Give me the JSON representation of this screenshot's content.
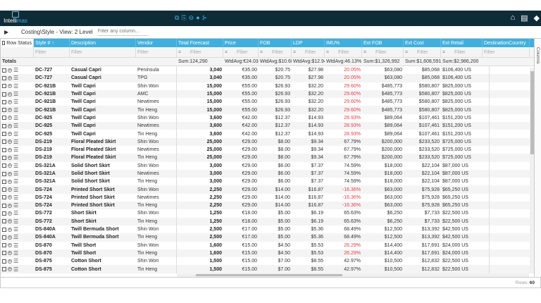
{
  "app": {
    "logo_text": "Intelli",
    "logo_accent": "mas",
    "brand_color": "#0e2b38",
    "accent": "#3fb0dd",
    "negative_color": "#e0404a"
  },
  "toolbar": {
    "view_title": "Costing\\Style - View: 2 Level",
    "filter_placeholder": "Filter any column..."
  },
  "columns": [
    "Row Status",
    "Style # ↑",
    "Description",
    "Vendor",
    "Total Forecast",
    "Price",
    "FOB",
    "LDP",
    "IMU%",
    "Ext FOB",
    "Ext Cost",
    "Ext Retail",
    "DestinationCountry"
  ],
  "filter_placeholder": "Filter",
  "filter_op": "=",
  "totals": {
    "label": "Totals",
    "total_forecast": "Sum:124,290",
    "price": "WtdAvg:€24.03",
    "fob": "WtdAvg:$10.68",
    "ldp": "WtdAvg:$12.94",
    "imu": "WtdAvg:46.13%",
    "ext_fob": "Sum:$1,326,992",
    "ext_cost": "Sum:$1,608,591",
    "ext_retail": "Sum:$2,986,200"
  },
  "rows": [
    [
      "DC-727",
      "Casual Capri",
      "Peninsula",
      "3,040",
      "€35.00",
      "$20.75",
      "$27.98",
      "20.05%",
      "$63,080",
      "$85,068",
      "$106,400 US"
    ],
    [
      "DC-727",
      "Casual Capri",
      "TPG",
      "3,040",
      "€35.00",
      "$20.75",
      "$27.98",
      "20.05%",
      "$63,080",
      "$85,068",
      "$106,400 US"
    ],
    [
      "DC-921B",
      "Twill Capri",
      "Shin Won",
      "15,000",
      "€55.00",
      "$26.93",
      "$32.20",
      "29.60%",
      "$485,773",
      "$580,807",
      "$825,000 US"
    ],
    [
      "DC-921B",
      "Twill Capri",
      "AMC",
      "15,000",
      "€55.00",
      "$26.93",
      "$32.20",
      "29.60%",
      "$485,773",
      "$580,807",
      "$825,000 US"
    ],
    [
      "DC-921B",
      "Twill Capri",
      "Newtimes",
      "15,000",
      "€55.00",
      "$26.93",
      "$32.20",
      "29.60%",
      "$485,773",
      "$580,807",
      "$825,000 US"
    ],
    [
      "DC-921B",
      "Twill Capri",
      "Tin Heng",
      "15,000",
      "€55.00",
      "$26.93",
      "$32.20",
      "29.60%",
      "$485,773",
      "$580,807",
      "$825,000 US"
    ],
    [
      "DC-925",
      "Twill Capri",
      "Shin Won",
      "3,600",
      "€42.00",
      "$12.37",
      "$14.93",
      "28.93%",
      "$89,064",
      "$107,461",
      "$151,200 US"
    ],
    [
      "DC-925",
      "Twill Capri",
      "Newtimes",
      "3,600",
      "€42.00",
      "$12.37",
      "$14.93",
      "28.93%",
      "$89,064",
      "$107,461",
      "$151,200 US"
    ],
    [
      "DC-925",
      "Twill Capri",
      "Tin Heng",
      "3,600",
      "€42.00",
      "$12.37",
      "$14.93",
      "28.93%",
      "$89,064",
      "$107,461",
      "$151,200 US"
    ],
    [
      "DS-219",
      "Floral Pleated Skirt",
      "Shin Won",
      "25,000",
      "€29.00",
      "$8.00",
      "$9.34",
      "67.79%",
      "$200,000",
      "$233,520",
      "$725,000 US"
    ],
    [
      "DS-219",
      "Floral Pleated Skirt",
      "Newtimes",
      "25,000",
      "€29.00",
      "$8.00",
      "$9.34",
      "67.79%",
      "$200,000",
      "$233,520",
      "$725,000 US"
    ],
    [
      "DS-219",
      "Floral Pleated Skirt",
      "Tin Heng",
      "25,000",
      "€29.00",
      "$8.00",
      "$9.34",
      "67.79%",
      "$200,000",
      "$233,520",
      "$725,000 US"
    ],
    [
      "DS-321A",
      "Solid Short Skirt",
      "Shin Won",
      "3,000",
      "€29.00",
      "$6.00",
      "$7.37",
      "74.59%",
      "$18,000",
      "$22,104",
      "$87,000 US"
    ],
    [
      "DS-321A",
      "Solid Short Skirt",
      "Newtimes",
      "3,000",
      "€29.00",
      "$6.00",
      "$7.37",
      "74.59%",
      "$18,000",
      "$22,104",
      "$87,000 US"
    ],
    [
      "DS-321A",
      "Solid Short Skirt",
      "Tin Heng",
      "3,000",
      "€29.00",
      "$6.00",
      "$7.37",
      "74.59%",
      "$18,000",
      "$22,104",
      "$87,000 US"
    ],
    [
      "DS-724",
      "Printed Short Skirt",
      "Shin Won",
      "2,250",
      "€29.00",
      "$14.00",
      "$16.87",
      "-16.36%",
      "$63,000",
      "$75,928",
      "$65,250 US"
    ],
    [
      "DS-724",
      "Printed Short Skirt",
      "Newtimes",
      "2,250",
      "€29.00",
      "$14.00",
      "$16.87",
      "-16.36%",
      "$63,000",
      "$75,928",
      "$65,250 US"
    ],
    [
      "DS-724",
      "Printed Short Skirt",
      "Tin Heng",
      "2,250",
      "€29.00",
      "$14.00",
      "$16.87",
      "-16.36%",
      "$63,000",
      "$75,928",
      "$65,250 US"
    ],
    [
      "DS-772",
      "Short Skirt",
      "Shin Won",
      "1,250",
      "€18.00",
      "$5.00",
      "$6.19",
      "65.63%",
      "$6,250",
      "$7,733",
      "$22,500 US"
    ],
    [
      "DS-772",
      "Short Skirt",
      "Tin Heng",
      "1,250",
      "€18.00",
      "$5.00",
      "$6.19",
      "65.63%",
      "$6,250",
      "$7,733",
      "$22,500 US"
    ],
    [
      "DS-840A",
      "Twill Bermuda Short",
      "Shin Won",
      "2,500",
      "€17.00",
      "$5.00",
      "$5.36",
      "68.49%",
      "$12,500",
      "$13,392",
      "$42,500 US"
    ],
    [
      "DS-840A",
      "Twill Bermuda Short",
      "Tin Heng",
      "2,500",
      "€17.00",
      "$5.00",
      "$5.36",
      "68.49%",
      "$12,500",
      "$13,392",
      "$42,500 US"
    ],
    [
      "DS-870",
      "Twill Short",
      "Shin Won",
      "1,600",
      "€15.00",
      "$4.50",
      "$5.53",
      "26.29%",
      "$14,400",
      "$17,691",
      "$24,000 US"
    ],
    [
      "DS-870",
      "Twill Short",
      "Tin Heng",
      "1,600",
      "€15.00",
      "$4.50",
      "$5.53",
      "26.29%",
      "$14,400",
      "$17,691",
      "$24,000 US"
    ],
    [
      "DS-875",
      "Cotton Short",
      "Shin Won",
      "1,500",
      "€15.00",
      "$7.00",
      "$8.55",
      "42.97%",
      "$10,500",
      "$12,832",
      "$22,500 US"
    ],
    [
      "DS-875",
      "Cotton Short",
      "Tin Heng",
      "1,500",
      "€15.00",
      "$7.00",
      "$8.55",
      "42.97%",
      "$10,500",
      "$12,832",
      "$22,500 US"
    ]
  ],
  "red_imu": [
    "20.05%",
    "29.60%",
    "28.93%",
    "-16.36%",
    "26.29%"
  ],
  "side_panel": {
    "label": "Columns"
  },
  "footer": {
    "rows_label": "Rows:",
    "rows_count": "60"
  }
}
